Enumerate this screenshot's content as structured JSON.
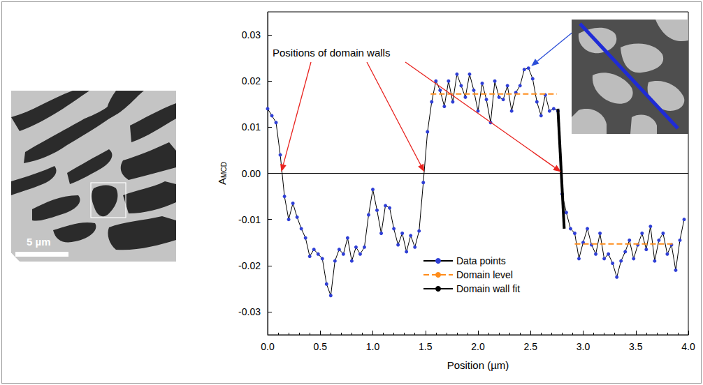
{
  "chart_data": {
    "type": "line",
    "xlabel": "Position (µm)",
    "ylabel": {
      "base": "A",
      "sub": "MCD"
    },
    "xlim": [
      0,
      4.0
    ],
    "xticks": [
      {
        "value": 0,
        "label": "0.0"
      },
      0.5,
      {
        "value": 1,
        "label": "1.0"
      },
      1.5,
      {
        "value": 2,
        "label": "2.0"
      },
      2.5,
      {
        "value": 3,
        "label": "3.0"
      },
      3.5,
      {
        "value": 4,
        "label": "4.0"
      }
    ],
    "ylim": [
      -0.035,
      0.035
    ],
    "yticks": [
      -0.03,
      -0.02,
      -0.01,
      {
        "value": 0,
        "label": "0.00"
      },
      0.01,
      0.02,
      0.03
    ],
    "grid": false,
    "legend": "bottom",
    "reference_line": 0,
    "series": [
      {
        "name": "Data points",
        "type": "line",
        "marker": "circle",
        "line_style": "solid",
        "color": "#2f3fd6",
        "x": [
          0.0,
          0.04,
          0.08,
          0.12,
          0.16,
          0.2,
          0.24,
          0.28,
          0.32,
          0.36,
          0.4,
          0.44,
          0.48,
          0.52,
          0.56,
          0.6,
          0.64,
          0.68,
          0.72,
          0.76,
          0.8,
          0.84,
          0.88,
          0.92,
          0.96,
          1.0,
          1.04,
          1.08,
          1.12,
          1.16,
          1.2,
          1.24,
          1.28,
          1.32,
          1.36,
          1.4,
          1.44,
          1.48,
          1.52,
          1.56,
          1.6,
          1.64,
          1.68,
          1.72,
          1.76,
          1.8,
          1.84,
          1.88,
          1.92,
          1.96,
          2.0,
          2.04,
          2.08,
          2.12,
          2.16,
          2.2,
          2.24,
          2.28,
          2.32,
          2.36,
          2.4,
          2.44,
          2.48,
          2.52,
          2.56,
          2.6,
          2.64,
          2.68,
          2.72,
          2.76,
          2.8,
          2.84,
          2.88,
          2.92,
          2.96,
          3.0,
          3.04,
          3.08,
          3.12,
          3.16,
          3.2,
          3.24,
          3.28,
          3.32,
          3.36,
          3.4,
          3.44,
          3.48,
          3.52,
          3.56,
          3.6,
          3.64,
          3.68,
          3.72,
          3.76,
          3.8,
          3.84,
          3.88,
          3.92,
          3.96
        ],
        "values": [
          0.014,
          0.0125,
          0.011,
          0.004,
          -0.005,
          -0.01,
          -0.0065,
          -0.0095,
          -0.012,
          -0.014,
          -0.018,
          -0.0165,
          -0.0175,
          -0.0185,
          -0.024,
          -0.0265,
          -0.019,
          -0.0165,
          -0.0175,
          -0.014,
          -0.019,
          -0.016,
          -0.0175,
          -0.016,
          -0.009,
          -0.0035,
          -0.008,
          -0.013,
          -0.007,
          -0.0075,
          -0.012,
          -0.0155,
          -0.013,
          -0.017,
          -0.0135,
          -0.016,
          -0.0125,
          -0.002,
          0.009,
          0.0155,
          0.02,
          0.018,
          0.0145,
          0.02,
          0.0155,
          0.0215,
          0.019,
          0.0165,
          0.0215,
          0.018,
          0.0135,
          0.0195,
          0.016,
          0.011,
          0.02,
          0.0165,
          0.016,
          0.019,
          0.0135,
          0.0175,
          0.019,
          0.0225,
          0.0228,
          0.0205,
          0.0155,
          0.0125,
          0.017,
          0.0135,
          0.014,
          0.0135,
          -0.0045,
          -0.0085,
          -0.012,
          -0.013,
          -0.0185,
          -0.015,
          -0.012,
          -0.0155,
          -0.0175,
          -0.013,
          -0.0185,
          -0.0175,
          -0.0195,
          -0.0225,
          -0.019,
          -0.017,
          -0.0145,
          -0.0185,
          -0.0155,
          -0.013,
          -0.0165,
          -0.0115,
          -0.019,
          -0.0145,
          -0.013,
          -0.0175,
          -0.0155,
          -0.021,
          -0.0145,
          -0.01
        ]
      },
      {
        "name": "Domain level",
        "type": "line",
        "line_style": "dashed",
        "color": "#ff8c1a",
        "x": [
          1.55,
          2.75,
          null,
          2.92,
          3.85
        ],
        "values": [
          0.0172,
          0.0172,
          null,
          -0.0153,
          -0.0153
        ]
      },
      {
        "name": "Domain wall fit",
        "type": "line",
        "line_style": "solid",
        "color": "#000000",
        "x": [
          2.76,
          2.82
        ],
        "values": [
          0.014,
          -0.012
        ]
      }
    ],
    "annotations": {
      "text": "Positions of domain walls",
      "points_to_x": [
        0.13,
        1.49,
        2.79
      ]
    },
    "inset": {
      "points_to": {
        "x": 2.48,
        "y": 0.0228
      }
    },
    "image": {
      "scale_bar": "5 µm"
    }
  }
}
